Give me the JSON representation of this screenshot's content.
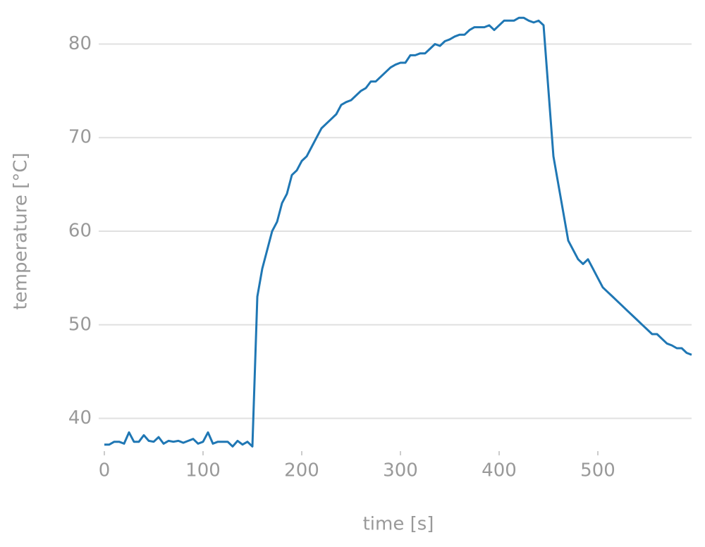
{
  "chart_data": {
    "type": "line",
    "x_label": "time [s]",
    "y_label": "temperature [°C]",
    "x": [
      0,
      5,
      10,
      15,
      20,
      25,
      30,
      35,
      40,
      45,
      50,
      55,
      60,
      65,
      70,
      75,
      80,
      85,
      90,
      95,
      100,
      105,
      110,
      115,
      120,
      125,
      130,
      135,
      140,
      145,
      150,
      155,
      160,
      165,
      170,
      175,
      180,
      185,
      190,
      195,
      200,
      205,
      210,
      215,
      220,
      225,
      230,
      235,
      240,
      245,
      250,
      255,
      260,
      265,
      270,
      275,
      280,
      285,
      290,
      295,
      300,
      305,
      310,
      315,
      320,
      325,
      330,
      335,
      340,
      345,
      350,
      355,
      360,
      365,
      370,
      375,
      380,
      385,
      390,
      395,
      400,
      405,
      410,
      415,
      420,
      425,
      430,
      435,
      440,
      445,
      450,
      455,
      460,
      465,
      470,
      475,
      480,
      485,
      490,
      495,
      500,
      505,
      510,
      515,
      520,
      525,
      530,
      535,
      540,
      545,
      550,
      555,
      560,
      565,
      570,
      575,
      580,
      585,
      590,
      595
    ],
    "series": [
      {
        "name": "temperature",
        "color": "#1f77b4",
        "values": [
          37.2,
          37.2,
          37.5,
          37.5,
          37.3,
          38.5,
          37.5,
          37.5,
          38.2,
          37.6,
          37.5,
          38,
          37.3,
          37.6,
          37.5,
          37.6,
          37.4,
          37.6,
          37.8,
          37.3,
          37.5,
          38.5,
          37.3,
          37.5,
          37.5,
          37.5,
          37,
          37.6,
          37.2,
          37.5,
          37,
          53,
          56,
          58,
          60,
          61,
          63,
          64,
          66,
          66.5,
          67.5,
          68,
          69,
          70,
          71,
          71.5,
          72,
          72.5,
          73.5,
          73.8,
          74,
          74.5,
          75,
          75.3,
          76,
          76,
          76.5,
          77,
          77.5,
          77.8,
          78,
          78,
          78.8,
          78.8,
          79,
          79,
          79.5,
          80,
          79.8,
          80.3,
          80.5,
          80.8,
          81,
          81,
          81.5,
          81.8,
          81.8,
          81.8,
          82,
          81.5,
          82,
          82.5,
          82.5,
          82.5,
          82.8,
          82.8,
          82.5,
          82.3,
          82.5,
          82,
          75,
          68,
          65,
          62,
          59,
          58,
          57,
          56.5,
          57,
          56,
          55,
          54,
          53.5,
          53,
          52.5,
          52,
          51.5,
          51,
          50.5,
          50,
          49.5,
          49,
          49,
          48.5,
          48,
          47.8,
          47.5,
          47.5,
          47,
          46.8
        ]
      }
    ],
    "xlim": [
      0,
      595
    ],
    "ylim": [
      36.5,
      83.5
    ],
    "xticks": [
      0,
      100,
      200,
      300,
      400,
      500
    ],
    "yticks": [
      40,
      50,
      60,
      70,
      80
    ],
    "grid": true
  }
}
